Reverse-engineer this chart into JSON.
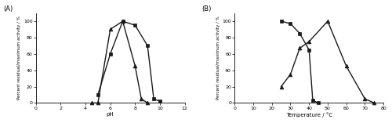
{
  "panel_A": {
    "xlabel": "pH",
    "ylabel": "Percent residual/maximum activity / %",
    "xlim": [
      0,
      12
    ],
    "ylim": [
      0,
      110
    ],
    "xticks": [
      0,
      2,
      4,
      6,
      8,
      10,
      12
    ],
    "yticks": [
      0,
      20,
      40,
      60,
      80,
      100
    ],
    "stability_x": [
      5,
      6,
      7,
      8,
      9,
      9.5,
      10
    ],
    "stability_y": [
      10,
      60,
      100,
      95,
      70,
      5,
      2
    ],
    "activity_x": [
      4.5,
      5,
      6,
      7,
      8,
      8.5,
      9
    ],
    "activity_y": [
      0,
      0,
      90,
      100,
      45,
      5,
      0
    ],
    "label": "(A)"
  },
  "panel_B": {
    "xlabel": "Temperature / °C",
    "ylabel": "Percent residual/maximum activity / %",
    "xlim": [
      0,
      80
    ],
    "ylim": [
      0,
      110
    ],
    "xticks": [
      0,
      10,
      20,
      30,
      40,
      50,
      60,
      70,
      80
    ],
    "yticks": [
      0,
      20,
      40,
      60,
      80,
      100
    ],
    "stability_x": [
      25,
      30,
      35,
      40,
      42,
      45
    ],
    "stability_y": [
      100,
      97,
      85,
      65,
      3,
      0
    ],
    "activity_x": [
      25,
      30,
      35,
      40,
      50,
      60,
      70,
      75
    ],
    "activity_y": [
      20,
      35,
      67,
      75,
      100,
      45,
      5,
      0
    ],
    "label": "(B)"
  },
  "line_color": "#1a1a1a",
  "marker_square": "s",
  "marker_triangle": "^",
  "markersize": 3.5,
  "linewidth": 1.0
}
